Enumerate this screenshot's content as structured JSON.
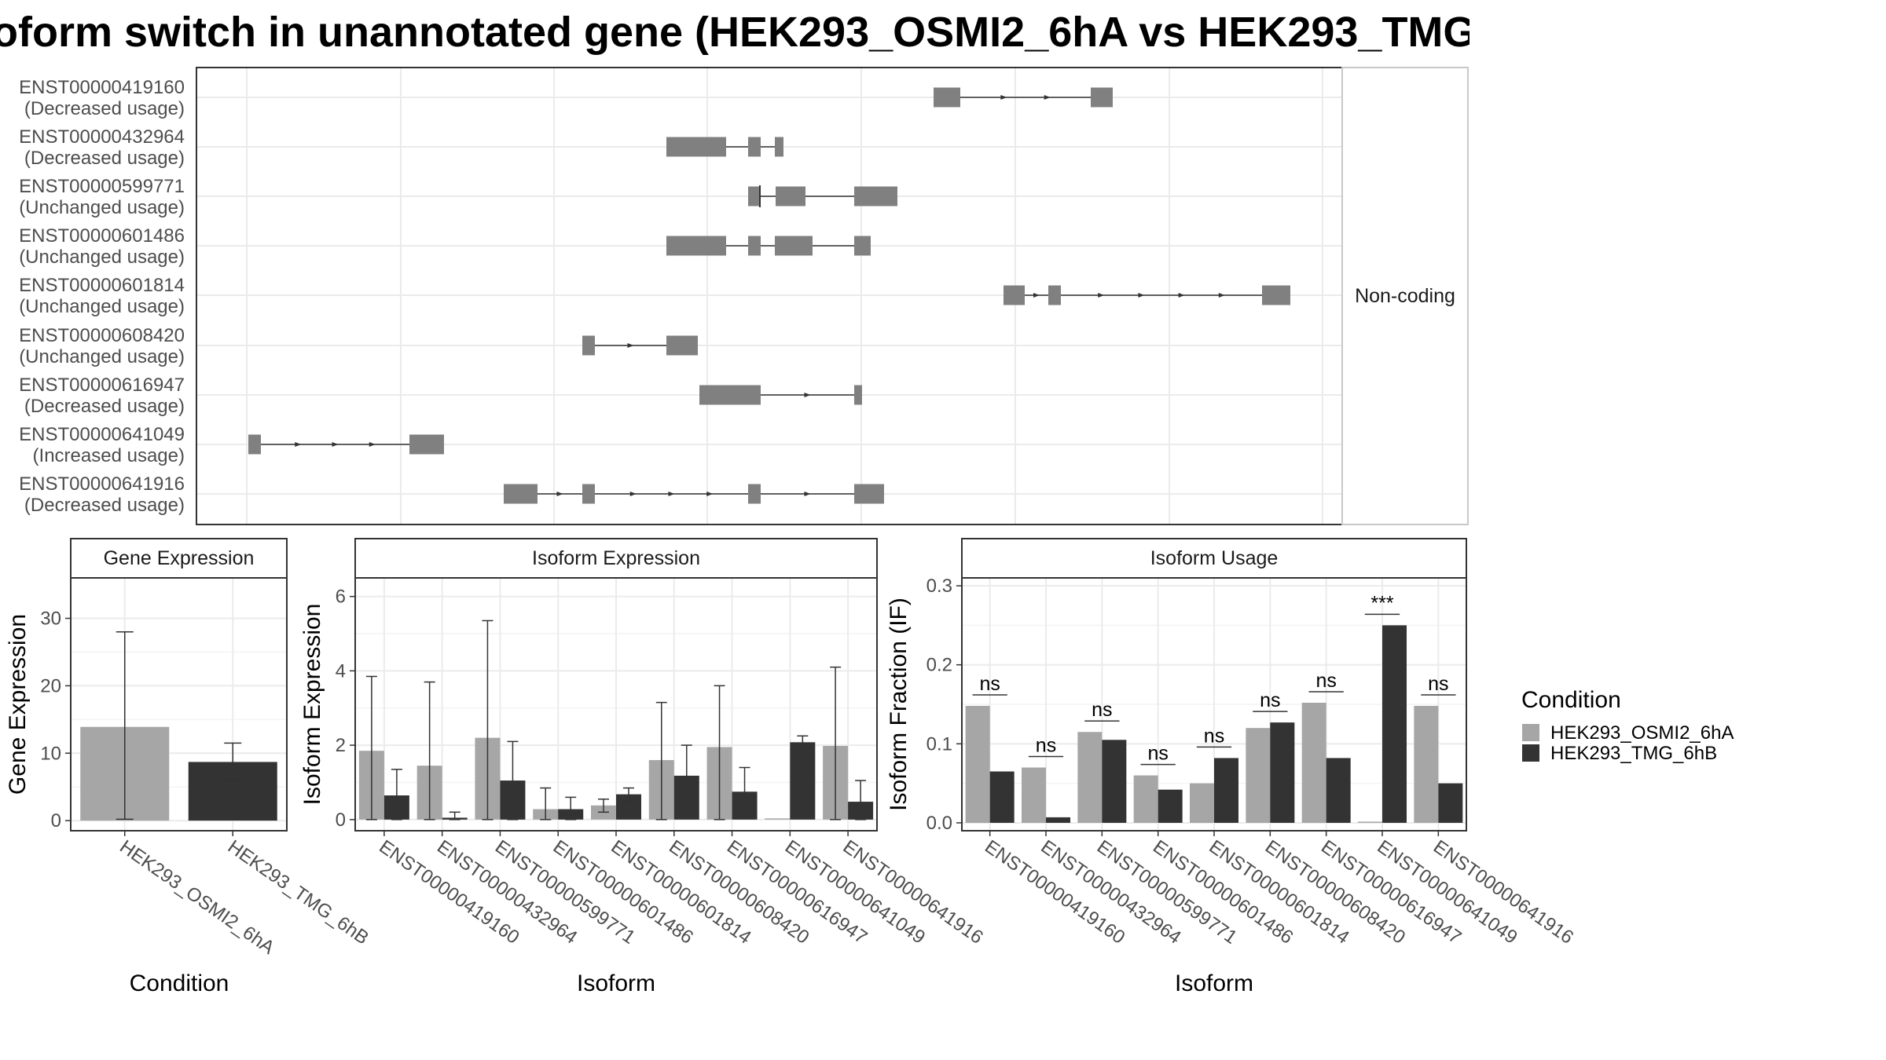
{
  "title": "oform switch in unannotated gene (HEK293_OSMI2_6hA vs HEK293_TMG",
  "chart_data": [
    {
      "panel": "transcript-structure",
      "type": "other",
      "facet_label": "Non-coding",
      "transcripts": [
        {
          "id": "ENST00000419160",
          "status": "(Decreased usage)"
        },
        {
          "id": "ENST00000432964",
          "status": "(Decreased usage)"
        },
        {
          "id": "ENST00000599771",
          "status": "(Unchanged usage)"
        },
        {
          "id": "ENST00000601486",
          "status": "(Unchanged usage)"
        },
        {
          "id": "ENST00000601814",
          "status": "(Unchanged usage)"
        },
        {
          "id": "ENST00000608420",
          "status": "(Unchanged usage)"
        },
        {
          "id": "ENST00000616947",
          "status": "(Decreased usage)"
        },
        {
          "id": "ENST00000641049",
          "status": "(Increased usage)"
        },
        {
          "id": "ENST00000641916",
          "status": "(Decreased usage)"
        }
      ],
      "exon_color": "#808080"
    },
    {
      "panel": "gene-expression",
      "type": "bar",
      "strip_title": "Gene Expression",
      "ylabel": "Gene Expression",
      "xlabel": "Condition",
      "categories": [
        "HEK293_OSMI2_6hA",
        "HEK293_TMG_6hB"
      ],
      "values": [
        13.9,
        8.7
      ],
      "err_low": [
        0.2,
        6.0
      ],
      "err_high": [
        28.0,
        11.5
      ],
      "ylim": [
        -1.5,
        36
      ],
      "yticks": [
        0,
        10,
        20,
        30
      ]
    },
    {
      "panel": "isoform-expression",
      "type": "bar",
      "strip_title": "Isoform Expression",
      "ylabel": "Isoform Expression",
      "xlabel": "Isoform",
      "categories": [
        "ENST00000419160",
        "ENST00000432964",
        "ENST00000599771",
        "ENST00000601486",
        "ENST00000601814",
        "ENST00000608420",
        "ENST00000616947",
        "ENST00000641049",
        "ENST00000641916"
      ],
      "series": [
        {
          "name": "HEK293_OSMI2_6hA",
          "values": [
            1.85,
            1.45,
            2.2,
            0.28,
            0.38,
            1.6,
            1.95,
            0,
            1.98
          ],
          "err_low": [
            0,
            0,
            0,
            0,
            0.2,
            0,
            0,
            0,
            0
          ],
          "err_high": [
            3.85,
            3.7,
            5.35,
            0.85,
            0.55,
            3.15,
            3.6,
            0,
            4.1
          ]
        },
        {
          "name": "HEK293_TMG_6hB",
          "values": [
            0.65,
            0.05,
            1.05,
            0.28,
            0.68,
            1.18,
            0.75,
            2.08,
            0.48
          ],
          "err_low": [
            0,
            0,
            0,
            0,
            0.5,
            0.35,
            0.1,
            1.9,
            0
          ],
          "err_high": [
            1.35,
            0.2,
            2.1,
            0.6,
            0.85,
            2.0,
            1.4,
            2.25,
            1.05
          ]
        }
      ],
      "ylim": [
        -0.3,
        6.5
      ],
      "yticks": [
        0,
        2,
        4,
        6
      ]
    },
    {
      "panel": "isoform-usage",
      "type": "bar",
      "strip_title": "Isoform Usage",
      "ylabel": "Isoform Fraction (IF)",
      "xlabel": "Isoform",
      "categories": [
        "ENST00000419160",
        "ENST00000432964",
        "ENST00000599771",
        "ENST00000601486",
        "ENST00000601814",
        "ENST00000608420",
        "ENST00000616947",
        "ENST00000641049",
        "ENST00000641916"
      ],
      "series": [
        {
          "name": "HEK293_OSMI2_6hA",
          "values": [
            0.148,
            0.07,
            0.115,
            0.06,
            0.05,
            0.12,
            0.152,
            0,
            0.148
          ]
        },
        {
          "name": "HEK293_TMG_6hB",
          "values": [
            0.065,
            0.007,
            0.105,
            0.042,
            0.082,
            0.127,
            0.082,
            0.25,
            0.05
          ]
        }
      ],
      "significance": [
        "ns",
        "ns",
        "ns",
        "ns",
        "ns",
        "ns",
        "ns",
        "***",
        "ns"
      ],
      "ylim": [
        -0.01,
        0.31
      ],
      "yticks": [
        "0.0",
        "0.1",
        "0.2",
        "0.3"
      ]
    }
  ],
  "legend": {
    "title": "Condition",
    "entries": [
      {
        "name": "HEK293_OSMI2_6hA",
        "color": "#a6a6a6"
      },
      {
        "name": "HEK293_TMG_6hB",
        "color": "#333333"
      }
    ]
  }
}
